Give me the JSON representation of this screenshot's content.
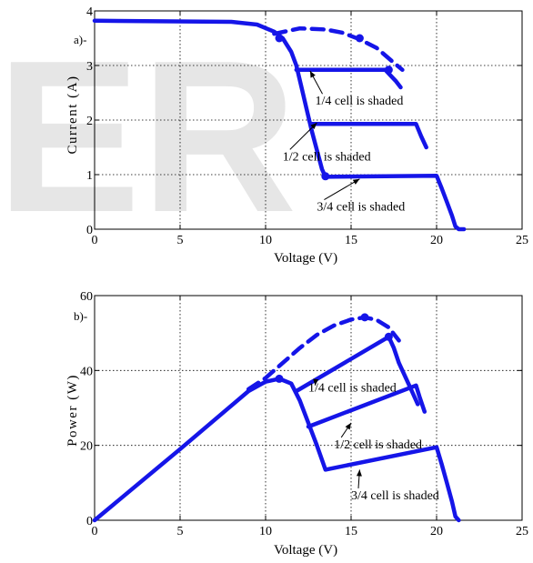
{
  "watermark": "ER",
  "colors": {
    "curve": "#1515e8",
    "axis": "#000000",
    "grid": "#000000",
    "watermark": "#e6e6e6"
  },
  "chart_data": [
    {
      "type": "line",
      "panel_label": "a)-",
      "xlabel": "Voltage (V)",
      "ylabel": "Current (A)",
      "xlim": [
        0,
        25
      ],
      "ylim": [
        0,
        4
      ],
      "xticks": [
        0,
        5,
        10,
        15,
        20,
        25
      ],
      "yticks": [
        0,
        1,
        2,
        3,
        4
      ],
      "grid": true,
      "series": [
        {
          "style": "dashed",
          "x": [
            10.5,
            12,
            13.5,
            14.5,
            15.5,
            16.5,
            17.5,
            18.0
          ],
          "y": [
            3.58,
            3.68,
            3.66,
            3.6,
            3.48,
            3.32,
            3.05,
            2.92
          ]
        },
        {
          "style": "solid",
          "x": [
            0,
            8,
            9.5,
            10.5,
            11.0,
            11.5,
            11.8,
            12.1,
            12.4,
            12.7,
            13.0,
            13.3,
            13.5,
            20.0,
            20.3,
            20.6,
            20.9,
            21.1,
            21.3,
            21.6
          ],
          "y": [
            3.82,
            3.8,
            3.75,
            3.62,
            3.5,
            3.25,
            3.0,
            2.6,
            2.2,
            1.8,
            1.45,
            1.1,
            0.96,
            0.98,
            0.75,
            0.5,
            0.25,
            0.05,
            0.0,
            0.0
          ]
        },
        {
          "style": "solid",
          "x": [
            11.8,
            17.0,
            17.3,
            17.6,
            17.9
          ],
          "y": [
            2.92,
            2.92,
            2.82,
            2.72,
            2.6
          ]
        },
        {
          "style": "solid",
          "x": [
            12.7,
            18.8,
            19.1,
            19.4
          ],
          "y": [
            1.93,
            1.93,
            1.7,
            1.5
          ]
        }
      ],
      "markers": [
        {
          "x": 10.8,
          "y": 3.5
        },
        {
          "x": 15.5,
          "y": 3.5
        },
        {
          "x": 17.2,
          "y": 2.92
        },
        {
          "x": 13.5,
          "y": 0.97
        }
      ],
      "annotations": [
        {
          "text": "1/4 cell is shaded",
          "x": 12.9,
          "y": 2.28,
          "ax": 12.6,
          "ay": 2.9
        },
        {
          "text": "1/2 cell is shaded",
          "x": 11.0,
          "y": 1.26,
          "ax": 13.0,
          "ay": 1.95
        },
        {
          "text": "3/4 cell is shaded",
          "x": 13.0,
          "y": 0.34,
          "ax": 15.5,
          "ay": 0.92
        }
      ]
    },
    {
      "type": "line",
      "panel_label": "b)-",
      "xlabel": "Voltage (V)",
      "ylabel": "Power (W)",
      "xlim": [
        0,
        25
      ],
      "ylim": [
        0,
        60
      ],
      "xticks": [
        0,
        5,
        10,
        15,
        20,
        25
      ],
      "yticks": [
        0,
        20,
        40,
        60
      ],
      "grid": true,
      "series": [
        {
          "style": "dashed",
          "x": [
            9.0,
            10.0,
            11.0,
            12.0,
            13.0,
            14.0,
            15.0,
            15.8,
            16.5,
            17.2,
            17.8
          ],
          "y": [
            35,
            38,
            42,
            46,
            49.5,
            52,
            53.6,
            54.2,
            53.5,
            51.5,
            48
          ]
        },
        {
          "style": "solid",
          "x": [
            0,
            5,
            9,
            10,
            10.8,
            11.5,
            12.0,
            12.5,
            13.0,
            13.5,
            20.0,
            20.3,
            20.6,
            20.9,
            21.1,
            21.3
          ],
          "y": [
            0,
            19,
            34.5,
            37,
            37.8,
            36.5,
            32,
            26,
            20,
            13.5,
            19.5,
            15,
            10,
            5,
            1,
            0
          ]
        },
        {
          "style": "solid",
          "x": [
            11.8,
            17.2,
            17.5,
            17.8,
            18.2,
            18.6,
            18.9
          ],
          "y": [
            34.5,
            49,
            46,
            42,
            38,
            34,
            31
          ]
        },
        {
          "style": "solid",
          "x": [
            12.5,
            18.8,
            19.0,
            19.3
          ],
          "y": [
            25,
            36,
            33,
            29
          ]
        }
      ],
      "markers": [
        {
          "x": 10.8,
          "y": 37.8
        },
        {
          "x": 15.8,
          "y": 54.2
        },
        {
          "x": 17.2,
          "y": 49
        }
      ],
      "annotations": [
        {
          "text": "1/4 cell is shaded",
          "x": 12.5,
          "y": 34.4,
          "ax": 12.9,
          "ay": 36
        },
        {
          "text": "1/2 cell is shaded",
          "x": 14.0,
          "y": 19.2,
          "ax": 15.0,
          "ay": 26
        },
        {
          "text": "3/4 cell is shaded",
          "x": 15.0,
          "y": 5.6,
          "ax": 15.5,
          "ay": 13.5
        }
      ]
    }
  ]
}
